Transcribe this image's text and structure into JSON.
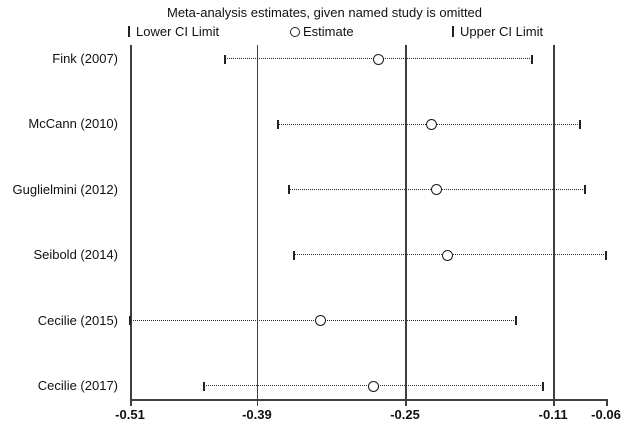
{
  "title": "Meta-analysis estimates, given named study is omitted",
  "legend": {
    "lower_label": "Lower CI Limit",
    "estimate_label": "Estimate",
    "upper_label": "Upper CI Limit"
  },
  "colors": {
    "background": "#ffffff",
    "reference_line": "#3f3f3f",
    "ci_dotted_line": "#2a2a2a",
    "marker_stroke": "#1a1a1a",
    "text": "#111111"
  },
  "chart_data": {
    "type": "scatter",
    "subtype": "leave-one-out sensitivity forest plot with confidence intervals",
    "title": "Meta-analysis estimates, given named study is omitted",
    "categories": [
      "Fink (2007)",
      "McCann (2010)",
      "Guglielmini (2012)",
      "Seibold (2014)",
      "Cecilie (2015)",
      "Cecilie (2017)"
    ],
    "series": [
      {
        "name": "Estimate",
        "values": [
          -0.275,
          -0.225,
          -0.22,
          -0.21,
          -0.33,
          -0.28
        ]
      },
      {
        "name": "Lower CI Limit",
        "values": [
          -0.42,
          -0.37,
          -0.36,
          -0.355,
          -0.51,
          -0.44
        ]
      },
      {
        "name": "Upper CI Limit",
        "values": [
          -0.13,
          -0.085,
          -0.08,
          -0.06,
          -0.145,
          -0.12
        ]
      }
    ],
    "overall_reference_lines": {
      "lower": -0.39,
      "estimate": -0.25,
      "upper": -0.11
    },
    "xlabel": "",
    "ylabel": "",
    "xlim": [
      -0.51,
      -0.06
    ],
    "x_ticks": [
      -0.51,
      -0.39,
      -0.25,
      -0.11,
      -0.06
    ],
    "x_tick_labels": [
      "-0.51",
      "-0.39",
      "-0.25",
      "-0.11",
      "-0.06"
    ],
    "grid": "vertical reference lines only",
    "legend_position": "top"
  }
}
